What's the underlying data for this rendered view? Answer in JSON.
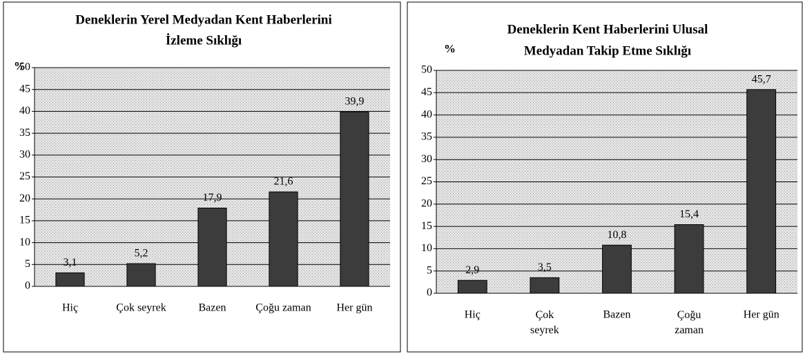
{
  "chart_data": [
    {
      "type": "bar",
      "title": [
        "Deneklerin Yerel Medyadan Kent Haberlerini",
        "İzleme Sıklığı"
      ],
      "y_label": "%",
      "categories": [
        "Hiç",
        "Çok seyrek",
        "Bazen",
        "Çoğu zaman",
        "Her gün"
      ],
      "values": [
        3.1,
        5.2,
        17.9,
        21.6,
        39.9
      ],
      "value_labels": [
        "3,1",
        "5,2",
        "17,9",
        "21,6",
        "39,9"
      ],
      "color": "#3c3c3c",
      "ylim": [
        0,
        50
      ],
      "yticks": [
        0,
        5,
        10,
        15,
        20,
        25,
        30,
        35,
        40,
        45,
        50
      ],
      "grid": true
    },
    {
      "type": "bar",
      "title": [
        "Deneklerin Kent Haberlerini Ulusal",
        "Medyadan Takip Etme Sıklığı"
      ],
      "y_label": "%",
      "categories": [
        "Hiç",
        "Çok seyrek",
        "Bazen",
        "Çoğu zaman",
        "Her gün"
      ],
      "values": [
        2.9,
        3.5,
        10.8,
        15.4,
        45.7
      ],
      "value_labels": [
        "2,9",
        "3,5",
        "10,8",
        "15,4",
        "45,7"
      ],
      "color": "#3c3c3c",
      "ylim": [
        0,
        50
      ],
      "yticks": [
        0,
        5,
        10,
        15,
        20,
        25,
        30,
        35,
        40,
        45,
        50
      ],
      "grid": true
    }
  ]
}
